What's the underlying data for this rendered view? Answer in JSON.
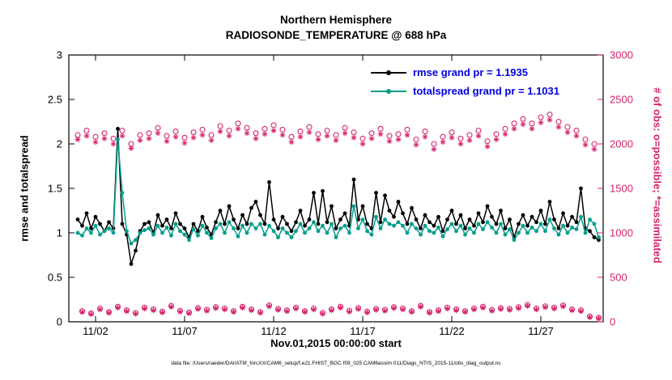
{
  "header": {
    "title_line1": "Northern Hemisphere",
    "title_line2": "RADIOSONDE_TEMPERATURE @ 688 hPa"
  },
  "caption": "data file: /Users/raeder/DAI/ATM_forcXX/CAM6_setup/f.e21.FHIST_BGC.f09_025.CAM6assim.011/Diags_NTrS_2015-11/obs_diag_output.nc",
  "chart_data": {
    "type": "line",
    "title": "Northern Hemisphere",
    "subtitle": "RADIOSONDE_TEMPERATURE @ 688 hPa",
    "xlabel": "Nov.01,2015 00:00:00 start",
    "ylabel_left": "rmse and totalspread",
    "ylabel_right": "# of obs: o=possible; *=assimilated",
    "ylim_left": [
      0,
      3
    ],
    "ylim_right": [
      0,
      3000
    ],
    "xlim_days": [
      -0.5,
      29.5
    ],
    "ytick_labels_left": [
      "0",
      "0.5",
      "1",
      "1.5",
      "2",
      "2.5",
      "3"
    ],
    "ytick_labels_right": [
      "0",
      "500",
      "1000",
      "1500",
      "2000",
      "2500",
      "3000"
    ],
    "xticks": [
      {
        "day": 1,
        "label": "11/02"
      },
      {
        "day": 6,
        "label": "11/07"
      },
      {
        "day": 11,
        "label": "11/12"
      },
      {
        "day": 16,
        "label": "11/17"
      },
      {
        "day": 21,
        "label": "11/22"
      },
      {
        "day": 26,
        "label": "11/27"
      }
    ],
    "time_start_day": 0,
    "time_step_days": 0.25,
    "grid": false,
    "colors": {
      "pink": "#d6246e",
      "teal": "#009e8c",
      "black": "#000000",
      "legend_blue": "#0000e0"
    },
    "legend": {
      "position": "top-right-inside",
      "text_color": "#0000e0",
      "entries": [
        {
          "label": "rmse grand pr = 1.1935",
          "color": "#000000"
        },
        {
          "label": "totalspread grand pr = 1.1031",
          "color": "#009e8c"
        }
      ]
    },
    "series": [
      {
        "name": "num-obs-possible",
        "marker": "open-circle",
        "line": false,
        "axis": "right",
        "color": "#d6246e",
        "values": [
          2100,
          120,
          2150,
          95,
          2080,
          150,
          2120,
          110,
          2060,
          170,
          2150,
          130,
          2000,
          100,
          2100,
          160,
          2120,
          140,
          2180,
          115,
          2090,
          180,
          2140,
          125,
          2070,
          105,
          2130,
          155,
          2160,
          135,
          2100,
          165,
          2200,
          150,
          2150,
          120,
          2230,
          170,
          2180,
          140,
          2120,
          110,
          2170,
          185,
          2210,
          145,
          2160,
          130,
          2080,
          160,
          2140,
          120,
          2190,
          150,
          2110,
          100,
          2150,
          140,
          2100,
          170,
          2180,
          125,
          2130,
          155,
          2060,
          115,
          2120,
          145,
          2170,
          135,
          2090,
          165,
          2110,
          150,
          2160,
          120,
          2050,
          180,
          2140,
          110,
          2000,
          130,
          2080,
          160,
          2130,
          140,
          2060,
          120,
          2100,
          150,
          2150,
          170,
          2030,
          135,
          2110,
          155,
          2170,
          145,
          2230,
          165,
          2280,
          190,
          2230,
          150,
          2300,
          175,
          2330,
          160,
          2250,
          185,
          2190,
          140,
          2150,
          130,
          2050,
          60,
          2000,
          45
        ]
      },
      {
        "name": "num-obs-assimilated",
        "marker": "asterisk",
        "line": false,
        "axis": "right",
        "color": "#d6246e",
        "values": [
          2050,
          108,
          2090,
          85,
          2020,
          138,
          2060,
          100,
          2000,
          158,
          2090,
          118,
          1950,
          90,
          2040,
          148,
          2060,
          128,
          2120,
          105,
          2030,
          168,
          2080,
          113,
          2010,
          95,
          2070,
          143,
          2100,
          123,
          2040,
          153,
          2140,
          138,
          2090,
          110,
          2170,
          158,
          2120,
          128,
          2060,
          100,
          2110,
          173,
          2150,
          133,
          2100,
          118,
          2020,
          148,
          2080,
          110,
          2130,
          138,
          2050,
          90,
          2090,
          128,
          2040,
          158,
          2120,
          113,
          2070,
          143,
          2000,
          105,
          2060,
          133,
          2110,
          123,
          2030,
          153,
          2050,
          138,
          2100,
          110,
          1990,
          168,
          2080,
          100,
          1940,
          118,
          2020,
          148,
          2070,
          128,
          2000,
          110,
          2040,
          138,
          2090,
          158,
          1970,
          123,
          2050,
          143,
          2110,
          133,
          2170,
          153,
          2220,
          178,
          2170,
          138,
          2240,
          163,
          2270,
          148,
          2190,
          173,
          2130,
          128,
          2090,
          118,
          1990,
          50,
          1940,
          38
        ]
      },
      {
        "name": "rmse",
        "marker": "filled-circle",
        "line": true,
        "axis": "left",
        "color": "#000000",
        "values": [
          1.15,
          1.08,
          1.22,
          1.05,
          1.18,
          1.1,
          1.02,
          1.12,
          1.05,
          2.17,
          1.1,
          0.98,
          0.65,
          0.8,
          1.02,
          1.1,
          1.12,
          1.0,
          1.2,
          1.08,
          1.15,
          1.05,
          1.22,
          1.1,
          1.05,
          0.95,
          1.1,
          1.02,
          1.18,
          1.06,
          0.98,
          1.12,
          1.25,
          1.1,
          1.3,
          1.15,
          1.05,
          1.2,
          1.1,
          1.28,
          1.35,
          1.2,
          1.1,
          1.57,
          1.15,
          1.05,
          1.18,
          1.1,
          1.02,
          1.12,
          1.25,
          1.08,
          1.15,
          1.45,
          1.1,
          1.47,
          1.12,
          1.3,
          1.05,
          1.15,
          1.22,
          1.08,
          1.6,
          1.15,
          1.3,
          1.1,
          1.05,
          1.45,
          1.12,
          1.42,
          1.25,
          1.18,
          1.35,
          1.22,
          1.1,
          1.28,
          1.15,
          1.05,
          1.2,
          1.12,
          1.08,
          1.18,
          1.02,
          1.15,
          1.25,
          1.1,
          1.2,
          1.05,
          1.15,
          1.08,
          1.22,
          1.12,
          1.3,
          1.18,
          1.1,
          1.25,
          1.05,
          1.15,
          0.95,
          1.1,
          1.2,
          1.08,
          1.18,
          1.12,
          1.25,
          1.1,
          1.35,
          1.15,
          1.05,
          1.22,
          1.08,
          1.18,
          1.12,
          1.5,
          1.05,
          1.02,
          0.95,
          0.92
        ]
      },
      {
        "name": "totalspread",
        "marker": "filled-circle",
        "line": true,
        "axis": "left",
        "color": "#009e8c",
        "values": [
          1.0,
          0.97,
          1.05,
          1.0,
          1.08,
          0.98,
          1.02,
          1.05,
          1.0,
          2.05,
          1.45,
          1.02,
          0.88,
          0.92,
          1.0,
          1.03,
          1.05,
          0.98,
          1.08,
          1.0,
          1.06,
          0.97,
          1.1,
          1.02,
          0.98,
          0.92,
          1.04,
          0.97,
          1.08,
          1.0,
          0.94,
          1.05,
          1.1,
          1.0,
          1.12,
          1.05,
          0.96,
          1.08,
          1.0,
          1.1,
          1.05,
          1.1,
          0.98,
          1.08,
          1.02,
          0.95,
          1.05,
          1.0,
          0.95,
          1.02,
          1.1,
          1.0,
          1.05,
          1.12,
          1.02,
          1.08,
          1.0,
          1.1,
          0.95,
          1.05,
          1.08,
          1.0,
          1.3,
          1.05,
          1.15,
          1.02,
          0.98,
          1.18,
          1.05,
          1.15,
          1.1,
          1.08,
          1.12,
          1.08,
          1.0,
          1.1,
          1.05,
          0.98,
          1.08,
          1.02,
          1.0,
          1.06,
          0.96,
          1.04,
          1.1,
          1.02,
          1.08,
          0.98,
          1.05,
          1.0,
          1.1,
          1.04,
          1.12,
          1.06,
          1.0,
          1.1,
          0.98,
          1.04,
          0.92,
          1.0,
          1.08,
          1.0,
          1.06,
          1.02,
          1.1,
          1.02,
          1.15,
          1.05,
          0.98,
          1.08,
          1.0,
          1.06,
          1.04,
          1.18,
          1.0,
          1.15,
          1.1,
          0.95
        ]
      }
    ]
  }
}
